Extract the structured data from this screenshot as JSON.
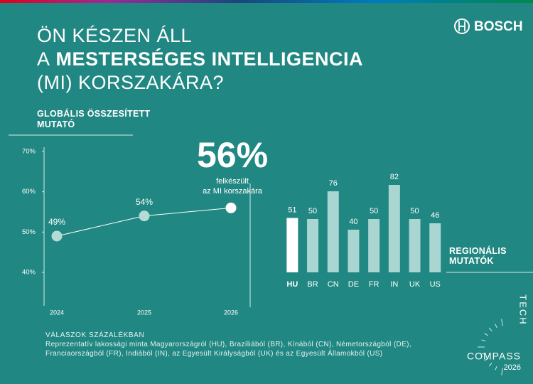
{
  "header": {
    "title": {
      "line1": "ÖN KÉSZEN ÁLL",
      "line2_prefix": "A",
      "line2_bold": "MESTERSÉGES INTELLIGENCIA",
      "line3": "(MI) KORSZAKÁRA?"
    },
    "logo": "BOSCH"
  },
  "chart_data": [
    {
      "type": "line",
      "title": "GLOBÁLIS ÖSSZESÍTETT MUTATÓ",
      "categories": [
        "2024",
        "2025",
        "2026"
      ],
      "values": [
        49,
        54,
        56
      ],
      "value_labels": [
        "49%",
        "54%",
        "56%"
      ],
      "annotation": [
        "felkészült",
        "az MI korszakára"
      ],
      "ylim": [
        40,
        70
      ],
      "yticks": [
        {
          "value": 40,
          "label": "40%"
        },
        {
          "value": 50,
          "label": "50%"
        },
        {
          "value": 60,
          "label": "60%"
        },
        {
          "value": 70,
          "label": "70%"
        }
      ],
      "color": "#ffffff"
    },
    {
      "type": "bar",
      "title": "REGIONÁLIS MUTATÓK",
      "categories": [
        "HU",
        "BR",
        "CN",
        "DE",
        "FR",
        "IN",
        "UK",
        "US"
      ],
      "values": [
        51,
        50,
        76,
        40,
        50,
        82,
        50,
        46
      ],
      "colors": [
        "#ffffff",
        "#a9d6d1",
        "#a9d6d1",
        "#a9d6d1",
        "#a9d6d1",
        "#a9d6d1",
        "#a9d6d1",
        "#a9d6d1"
      ]
    }
  ],
  "footer": {
    "heading": "VÁLASZOK SZÁZALÉKBAN",
    "note": "Reprezentatív lakossági minta Magyarországról (HU), Brazíliából (BR), Kínából (CN), Németországból (DE), Franciaországból (FR), Indiából (IN), az Egyesült Királyságból (UK) és az Egyesült Államokból (US)",
    "brand": [
      "TECH",
      "COMPASS",
      "2026"
    ]
  }
}
